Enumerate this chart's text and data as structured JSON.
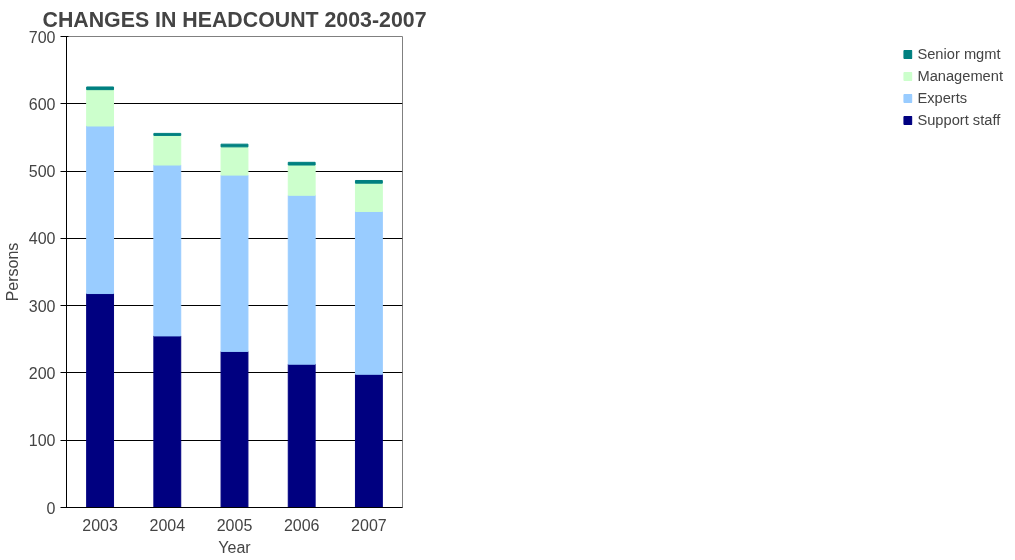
{
  "chart_data": {
    "type": "bar",
    "stacked": true,
    "title": "CHANGES IN HEADCOUNT 2003-2007",
    "xlabel": "Year",
    "ylabel": "Persons",
    "categories": [
      "2003",
      "2004",
      "2005",
      "2006",
      "2007"
    ],
    "series": [
      {
        "name": "Support staff",
        "color": "#000080",
        "values": [
          318,
          255,
          232,
          213,
          198
        ]
      },
      {
        "name": "Experts",
        "color": "#99ccff",
        "values": [
          249,
          254,
          262,
          251,
          242
        ]
      },
      {
        "name": "Management",
        "color": "#ccffcc",
        "values": [
          54,
          44,
          42,
          45,
          42
        ]
      },
      {
        "name": "Senior mgmt",
        "color": "#008080",
        "values": [
          4,
          3,
          4,
          4,
          4
        ]
      }
    ],
    "ylim": [
      0,
      700
    ],
    "yticks": [
      0,
      100,
      200,
      300,
      400,
      500,
      600,
      700
    ],
    "grid": "y",
    "legend": "right"
  }
}
